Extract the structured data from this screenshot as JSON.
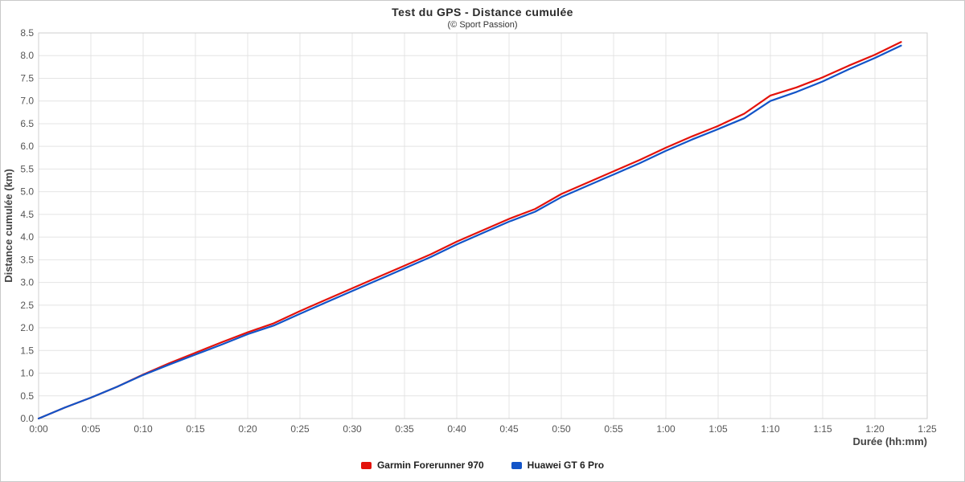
{
  "chart_data": {
    "type": "line",
    "title": "Test du GPS - Distance cumulée",
    "subtitle": "(© Sport Passion)",
    "xlabel": "Durée (hh:mm)",
    "ylabel": "Distance cumulée (km)",
    "x_unit": "minutes",
    "xlim": [
      0,
      85
    ],
    "ylim": [
      0,
      8.5
    ],
    "grid": true,
    "legend_position": "bottom",
    "x_tick_values": [
      0,
      5,
      10,
      15,
      20,
      25,
      30,
      35,
      40,
      45,
      50,
      55,
      60,
      65,
      70,
      75,
      80,
      85
    ],
    "x_tick_labels": [
      "0:00",
      "0:05",
      "0:10",
      "0:15",
      "0:20",
      "0:25",
      "0:30",
      "0:35",
      "0:40",
      "0:45",
      "0:50",
      "0:55",
      "1:00",
      "1:05",
      "1:10",
      "1:15",
      "1:20",
      "1:25"
    ],
    "y_tick_values": [
      0,
      0.5,
      1,
      1.5,
      2,
      2.5,
      3,
      3.5,
      4,
      4.5,
      5,
      5.5,
      6,
      6.5,
      7,
      7.5,
      8,
      8.5
    ],
    "y_tick_labels": [
      "0.0",
      "0.5",
      "1.0",
      "1.5",
      "2.0",
      "2.5",
      "3.0",
      "3.5",
      "4.0",
      "4.5",
      "5.0",
      "5.5",
      "6.0",
      "6.5",
      "7.0",
      "7.5",
      "8.0",
      "8.5"
    ],
    "x": [
      0,
      2.5,
      5,
      7.5,
      10,
      12.5,
      15,
      17.5,
      20,
      22.5,
      25,
      27.5,
      30,
      32.5,
      35,
      37.5,
      40,
      42.5,
      45,
      47.5,
      50,
      52.5,
      55,
      57.5,
      60,
      62.5,
      65,
      67.5,
      70,
      72.5,
      75,
      77.5,
      80,
      82.5
    ],
    "series": [
      {
        "name": "Garmin Forerunner 970",
        "color": "#e3120b",
        "values": [
          0.0,
          0.24,
          0.46,
          0.7,
          0.97,
          1.22,
          1.45,
          1.68,
          1.9,
          2.1,
          2.37,
          2.62,
          2.87,
          3.12,
          3.37,
          3.62,
          3.9,
          4.15,
          4.4,
          4.62,
          4.95,
          5.2,
          5.45,
          5.7,
          5.97,
          6.22,
          6.45,
          6.72,
          7.12,
          7.3,
          7.52,
          7.78,
          8.02,
          8.3
        ]
      },
      {
        "name": "Huawei GT 6 Pro",
        "color": "#1254c8",
        "values": [
          0.0,
          0.24,
          0.46,
          0.7,
          0.96,
          1.19,
          1.41,
          1.63,
          1.86,
          2.05,
          2.31,
          2.56,
          2.81,
          3.06,
          3.31,
          3.56,
          3.84,
          4.09,
          4.34,
          4.56,
          4.88,
          5.13,
          5.38,
          5.63,
          5.9,
          6.15,
          6.38,
          6.62,
          7.0,
          7.2,
          7.43,
          7.7,
          7.95,
          8.22
        ]
      }
    ]
  }
}
